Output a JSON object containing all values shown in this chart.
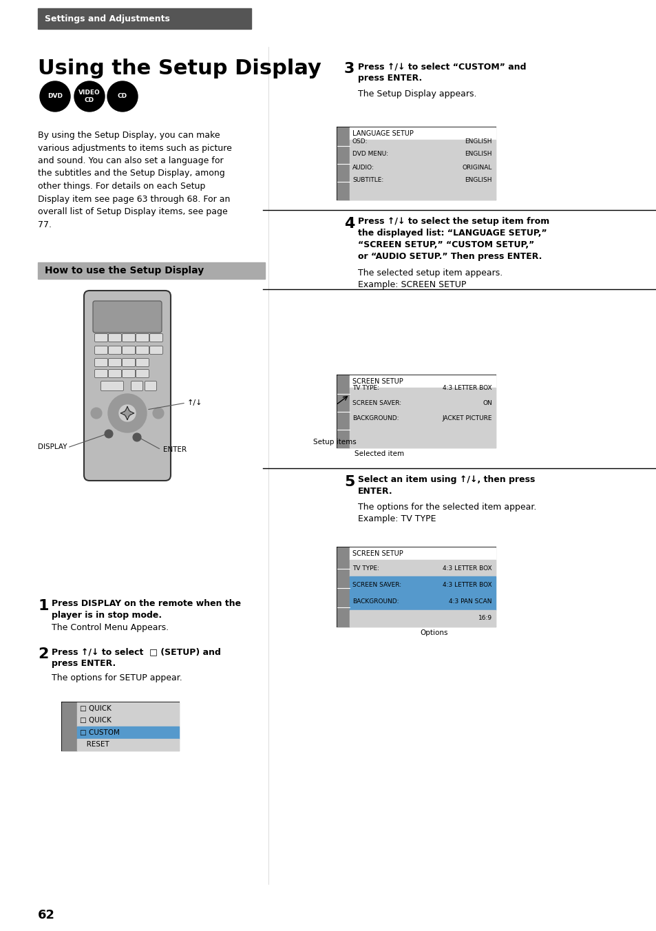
{
  "page_bg": "#ffffff",
  "header_bg": "#555555",
  "header_text": "Settings and Adjustments",
  "header_text_color": "#ffffff",
  "title": "Using the Setup Display",
  "subtitle_section": "How to use the Setup Display",
  "subtitle_section_bg": "#cccccc",
  "body_text_color": "#000000",
  "body_text": "By using the Setup Display, you can make\nvarious adjustments to items such as picture\nand sound. You can also set a language for\nthe subtitles and the Setup Display, among\nother things. For details on each Setup\nDisplay item see page 63 through 68. For an\noverall list of Setup Display items, see page\n77.",
  "step1_bold": "Press DISPLAY on the remote when the\nplayer is in stop mode.",
  "step1_normal": "The Control Menu Appears.",
  "step2_bold": "Press ↑/↓ to select   (SETUP) and\npress ENTER.",
  "step2_normal": "The options for SETUP appear.",
  "step3_bold": "Press ↑/↓ to select “CUSTOM” and\npress ENTER.",
  "step3_normal": "The Setup Display appears.",
  "step4_bold": "Press ↑/↓ to select the setup item from\nthe displayed list: “LANGUAGE SETUP,”\n“SCREEN SETUP,” “CUSTOM SETUP,”\nor “AUDIO SETUP.” Then press ENTER.",
  "step4_normal": "The selected setup item appears.\nExample: SCREEN SETUP",
  "step5_bold": "Select an item using ↑/↓, then press\nENTER.",
  "step5_normal": "The options for the selected item appear.\nExample: TV TYPE",
  "page_number": "62"
}
